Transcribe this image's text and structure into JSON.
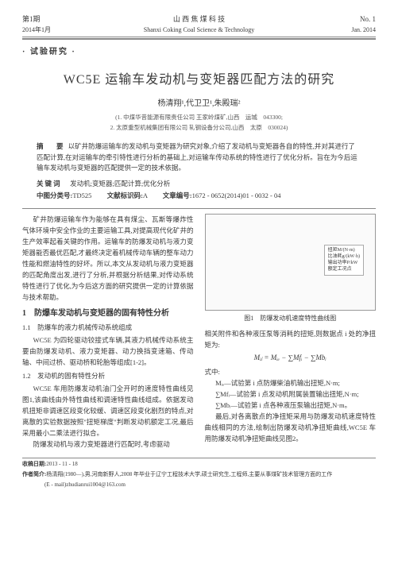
{
  "header": {
    "issue_cn": "第1期",
    "date_cn": "2014年1月",
    "journal_cn": "山 西 焦 煤 科 技",
    "journal_en": "Shanxi Coking Coal Science & Technology",
    "issue_en": "No. 1",
    "date_en": "Jan. 2014"
  },
  "tag": "· 试验研究 ·",
  "title": "WC5E 运输车发动机与变矩器匹配方法的研究",
  "authors": "杨清翔¹,代卫卫¹,朱殿瑞²",
  "affil1": "(1. 中煤华昔能源有限责任公司 王家岭煤矿,山西　运城　043300;",
  "affil2": "2. 太原重型机械集团有限公司 轧钢设备分公司,山西　太原　030024)",
  "abstract": {
    "label": "摘　要",
    "text": "以矿井防爆运输车的发动机与变矩器为研究对象,介绍了发动机与变矩器各自的特性,并对其进行了匹配计算,在对运输车的牵引特性进行分析的基础上,对运输车传动系统的特性进行了优化分析。旨在为今后运输车发动机与变矩器的匹配提供一定的技术依据。"
  },
  "keywords": {
    "label": "关键词",
    "text": "发动机;变矩器;匹配计算;优化分析"
  },
  "classification": {
    "clc_label": "中图分类号:",
    "clc": "TD525",
    "doc_label": "文献标识码:",
    "doc": "A",
    "art_label": "文章编号:",
    "art": "1672 - 0652(2014)01 - 0032 - 04"
  },
  "body": {
    "intro": "矿井防爆运输车作为能够在具有煤尘、瓦斯等爆炸性气体环境中安全作业的主要运输工具,对提高现代化矿井的生产效率起着关键的作用。运输车的防爆发动机与液力变矩器能否最优匹配,才最终决定着机械传动车辆的整车动力性能和燃油特性的好坏。所以,本文从发动机与液力变矩器的匹配角度出发,进行了分析,并根据分析结果,对传动系统特性进行了优化,为今后这方面的研究提供一定的计算依据与技术帮助。",
    "s1": "1　防爆车发动机与变矩器的固有特性分析",
    "s11": "1.1　防爆车的液力机械传动系统组成",
    "p11": "WC5E 为四轮驱动铰接式车辆,其液力机械传动系统主要由防爆发动机、液力变矩器、动力换挡变速箱、传动轴、中间过桥、驱动桥和轮胎等组成[1-2]。",
    "s12": "1.2　发动机的固有特性分析",
    "p12a": "WC5E 车用防爆发动机油门全开时的速度特性曲线见图1,该曲线由外特性曲线和调速特性曲线组成。依据发动机扭矩非调速区段变化较缓、调速区段变化剧烈的特点,对离散的实验数据按照\"扭矩梯度\"判断发动机额定工况,最后采用最小二乘法进行拟合。",
    "p12b": "防爆发动机与液力变矩器进行匹配时,考虑驱动",
    "fig1_caption": "图1　防爆发动机速度特性曲线图",
    "legend": {
      "l1": "扭矩M/(N·m)",
      "l2": "比油耗g/(kW·h)",
      "l3": "输出功率P/kW",
      "l4": "额定工况点"
    },
    "right1": "相关附件和各种液压泵等消耗的扭矩,则数据点 i 处的净扭矩为:",
    "formula1": "Mᵢⱼ = Mᵢₑ − ∑Mfᵢ − ∑Mbᵢ",
    "right2": "式中:",
    "right3": "Mᵢₑ—试验第 i 点防爆柴油机输出扭矩,N·m;",
    "right4": "∑Mfᵢ—试验第 i 点发动机附属装置输出扭矩,N·m;",
    "right5": "∑Mbᵢ—试验第 i 点各种液压泵输出扭矩,N·m。",
    "right6": "最后,对各离散点的净扭矩采用与防爆发动机速度特性曲线相同的方法,绘制出防爆发动机净扭矩曲线,WC5E 车用防爆发动机净扭矩曲线见图2。"
  },
  "footnotes": {
    "recv_label": "收稿日期:",
    "recv": "2013 - 11 - 18",
    "auth_label": "作者简介:",
    "auth": "杨清翔(1980—),男,河南新野人,2008 年毕业于辽宁工程技术大学,硕士研究生,工程师,主要从事煤矿技术管理方面的工作",
    "email": "(E - mail)zhudianrui1004@163.com"
  }
}
